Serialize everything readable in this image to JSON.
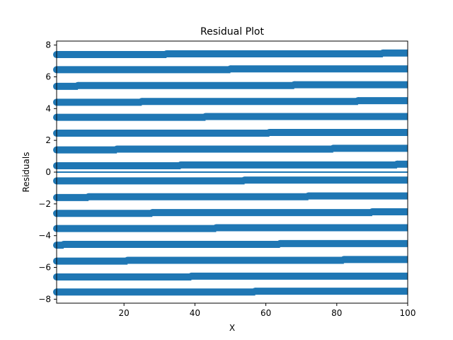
{
  "chart_data": {
    "type": "scatter",
    "title": "Residual Plot",
    "xlabel": "X",
    "ylabel": "Residuals",
    "xlim": [
      1,
      100
    ],
    "ylim": [
      -8.25,
      8.25
    ],
    "x_ticks": [
      20,
      40,
      60,
      80,
      100
    ],
    "y_ticks": [
      -8,
      -6,
      -4,
      -2,
      0,
      2,
      4,
      6,
      8
    ],
    "grid": false,
    "legend": "none",
    "marker_color": "#1f77b4",
    "zero_line": {
      "y": 0,
      "color": "#1f77b4"
    },
    "x_range": [
      1,
      100
    ],
    "x_step": 0.01,
    "bands": [
      {
        "segments": [
          {
            "x": [
              1,
              32
            ],
            "y": 7.4
          },
          {
            "x": [
              32,
              93
            ],
            "y": 7.45
          },
          {
            "x": [
              93,
              100
            ],
            "y": 7.5
          }
        ]
      },
      {
        "segments": [
          {
            "x": [
              1,
              50
            ],
            "y": 6.45
          },
          {
            "x": [
              50,
              100
            ],
            "y": 6.5
          }
        ]
      },
      {
        "segments": [
          {
            "x": [
              1,
              7
            ],
            "y": 5.4
          },
          {
            "x": [
              7,
              68
            ],
            "y": 5.45
          },
          {
            "x": [
              68,
              100
            ],
            "y": 5.5
          }
        ]
      },
      {
        "segments": [
          {
            "x": [
              1,
              25
            ],
            "y": 4.4
          },
          {
            "x": [
              25,
              86
            ],
            "y": 4.45
          },
          {
            "x": [
              86,
              100
            ],
            "y": 4.5
          }
        ]
      },
      {
        "segments": [
          {
            "x": [
              1,
              43
            ],
            "y": 3.45
          },
          {
            "x": [
              43,
              100
            ],
            "y": 3.5
          }
        ]
      },
      {
        "segments": [
          {
            "x": [
              1,
              61
            ],
            "y": 2.45
          },
          {
            "x": [
              61,
              100
            ],
            "y": 2.5
          }
        ]
      },
      {
        "segments": [
          {
            "x": [
              1,
              18
            ],
            "y": 1.4
          },
          {
            "x": [
              18,
              79
            ],
            "y": 1.45
          },
          {
            "x": [
              79,
              100
            ],
            "y": 1.5
          }
        ]
      },
      {
        "segments": [
          {
            "x": [
              1,
              36
            ],
            "y": 0.4
          },
          {
            "x": [
              36,
              97
            ],
            "y": 0.45
          },
          {
            "x": [
              97,
              100
            ],
            "y": 0.5
          }
        ]
      },
      {
        "segments": [
          {
            "x": [
              1,
              54
            ],
            "y": -0.55
          },
          {
            "x": [
              54,
              100
            ],
            "y": -0.5
          }
        ]
      },
      {
        "segments": [
          {
            "x": [
              1,
              10
            ],
            "y": -1.6
          },
          {
            "x": [
              10,
              72
            ],
            "y": -1.55
          },
          {
            "x": [
              72,
              100
            ],
            "y": -1.5
          }
        ]
      },
      {
        "segments": [
          {
            "x": [
              1,
              28
            ],
            "y": -2.6
          },
          {
            "x": [
              28,
              90
            ],
            "y": -2.55
          },
          {
            "x": [
              90,
              100
            ],
            "y": -2.5
          }
        ]
      },
      {
        "segments": [
          {
            "x": [
              1,
              46
            ],
            "y": -3.55
          },
          {
            "x": [
              46,
              100
            ],
            "y": -3.5
          }
        ]
      },
      {
        "segments": [
          {
            "x": [
              1,
              3
            ],
            "y": -4.6
          },
          {
            "x": [
              3,
              64
            ],
            "y": -4.55
          },
          {
            "x": [
              64,
              100
            ],
            "y": -4.5
          }
        ]
      },
      {
        "segments": [
          {
            "x": [
              1,
              21
            ],
            "y": -5.6
          },
          {
            "x": [
              21,
              82
            ],
            "y": -5.55
          },
          {
            "x": [
              82,
              100
            ],
            "y": -5.5
          }
        ]
      },
      {
        "segments": [
          {
            "x": [
              1,
              39
            ],
            "y": -6.6
          },
          {
            "x": [
              39,
              100
            ],
            "y": -6.55
          }
        ]
      },
      {
        "segments": [
          {
            "x": [
              1,
              57
            ],
            "y": -7.55
          },
          {
            "x": [
              57,
              100
            ],
            "y": -7.5
          }
        ]
      }
    ]
  }
}
